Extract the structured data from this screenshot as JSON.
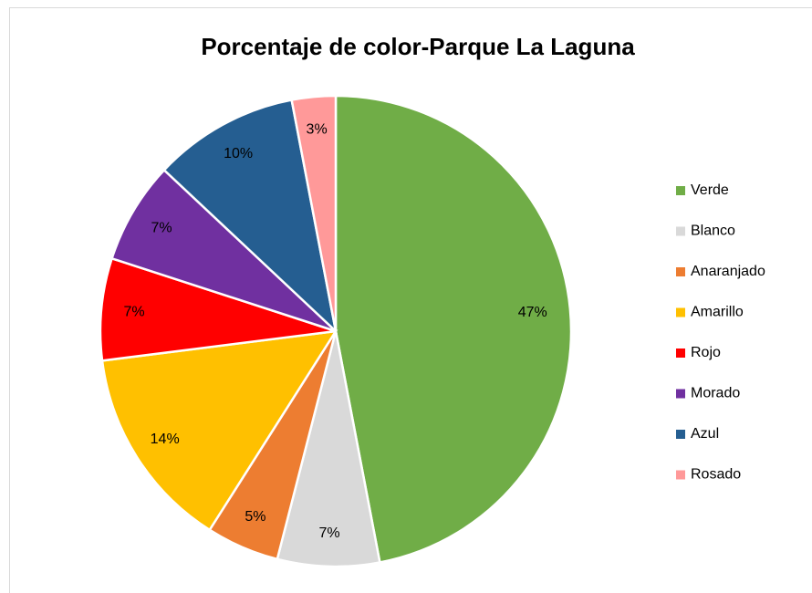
{
  "chart_data": {
    "type": "pie",
    "title": "Porcentaje de color-Parque La Laguna",
    "categories": [
      "Verde",
      "Blanco",
      "Anaranjado",
      "Amarillo",
      "Rojo",
      "Morado",
      "Azul",
      "Rosado"
    ],
    "values": [
      47,
      7,
      5,
      14,
      7,
      7,
      10,
      3
    ],
    "value_labels": [
      "47%",
      "7%",
      "5%",
      "14%",
      "7%",
      "7%",
      "10%",
      "3%"
    ],
    "colors": [
      "#70ad47",
      "#d9d9d9",
      "#ed7d31",
      "#ffc000",
      "#ff0000",
      "#7030a0",
      "#255e91",
      "#ff9999"
    ],
    "legend": "right"
  }
}
